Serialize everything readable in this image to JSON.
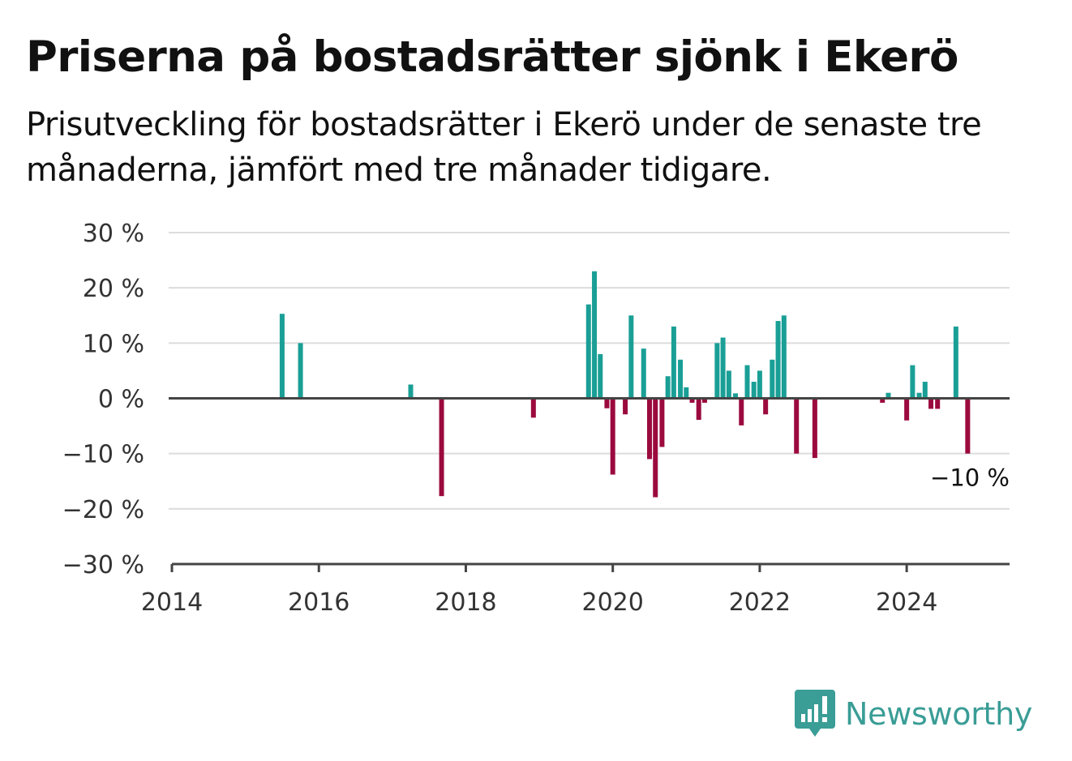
{
  "title": "Priserna på bostadsrätter sjönk i Ekerö",
  "subtitle": "Prisutveckling för bostadsrätter i Ekerö under de senaste tre månaderna, jämfört med tre månader tidigare.",
  "brand": {
    "name": "Newsworthy"
  },
  "colors": {
    "positive": "#1a9f96",
    "negative": "#9b0a3e",
    "grid": "#dcdcdc",
    "axis": "#444444",
    "brand": "#3a9d96"
  },
  "chart_data": {
    "type": "bar",
    "title": "Priserna på bostadsrätter sjönk i Ekerö",
    "xlabel": "",
    "ylabel": "",
    "ylim": [
      -30,
      30
    ],
    "xlim": [
      2014,
      2025.4
    ],
    "y_ticks": [
      30,
      20,
      10,
      0,
      -10,
      -20,
      -30
    ],
    "y_tick_labels": [
      "30 %",
      "20 %",
      "10 %",
      "0 %",
      "−10 %",
      "−20 %",
      "−30 %"
    ],
    "x_ticks": [
      2014,
      2016,
      2018,
      2020,
      2022,
      2024
    ],
    "x_tick_labels": [
      "2014",
      "2016",
      "2018",
      "2020",
      "2022",
      "2024"
    ],
    "grid": true,
    "annotation": {
      "text": "−10 %",
      "x": 2024.83,
      "y": -10
    },
    "series": [
      {
        "values": [
          {
            "x": 2015.5,
            "y": 15.3
          },
          {
            "x": 2015.75,
            "y": 10
          },
          {
            "x": 2017.25,
            "y": 2.5
          },
          {
            "x": 2017.67,
            "y": -17.7
          },
          {
            "x": 2018.92,
            "y": -3.5
          },
          {
            "x": 2019.67,
            "y": 17
          },
          {
            "x": 2019.75,
            "y": 23
          },
          {
            "x": 2019.83,
            "y": 8
          },
          {
            "x": 2019.92,
            "y": -1.8
          },
          {
            "x": 2020.0,
            "y": -13.8
          },
          {
            "x": 2020.17,
            "y": -2.9
          },
          {
            "x": 2020.25,
            "y": 15
          },
          {
            "x": 2020.42,
            "y": 9
          },
          {
            "x": 2020.5,
            "y": -11
          },
          {
            "x": 2020.58,
            "y": -17.9
          },
          {
            "x": 2020.67,
            "y": -8.8
          },
          {
            "x": 2020.75,
            "y": 4
          },
          {
            "x": 2020.83,
            "y": 13
          },
          {
            "x": 2020.92,
            "y": 7
          },
          {
            "x": 2021.0,
            "y": 2
          },
          {
            "x": 2021.08,
            "y": -0.8
          },
          {
            "x": 2021.17,
            "y": -3.9
          },
          {
            "x": 2021.25,
            "y": -0.8
          },
          {
            "x": 2021.42,
            "y": 10
          },
          {
            "x": 2021.5,
            "y": 11
          },
          {
            "x": 2021.58,
            "y": 5
          },
          {
            "x": 2021.67,
            "y": 0.9
          },
          {
            "x": 2021.75,
            "y": -4.9
          },
          {
            "x": 2021.83,
            "y": 6
          },
          {
            "x": 2021.92,
            "y": 3
          },
          {
            "x": 2022.0,
            "y": 5
          },
          {
            "x": 2022.08,
            "y": -2.9
          },
          {
            "x": 2022.17,
            "y": 7
          },
          {
            "x": 2022.25,
            "y": 14
          },
          {
            "x": 2022.33,
            "y": 15
          },
          {
            "x": 2022.5,
            "y": -10
          },
          {
            "x": 2022.75,
            "y": -10.8
          },
          {
            "x": 2023.67,
            "y": -0.8
          },
          {
            "x": 2023.75,
            "y": 1
          },
          {
            "x": 2024.0,
            "y": -4
          },
          {
            "x": 2024.08,
            "y": 6
          },
          {
            "x": 2024.17,
            "y": 1
          },
          {
            "x": 2024.25,
            "y": 3
          },
          {
            "x": 2024.33,
            "y": -1.9
          },
          {
            "x": 2024.42,
            "y": -1.9
          },
          {
            "x": 2024.67,
            "y": 13
          },
          {
            "x": 2024.83,
            "y": -10
          }
        ]
      }
    ]
  }
}
